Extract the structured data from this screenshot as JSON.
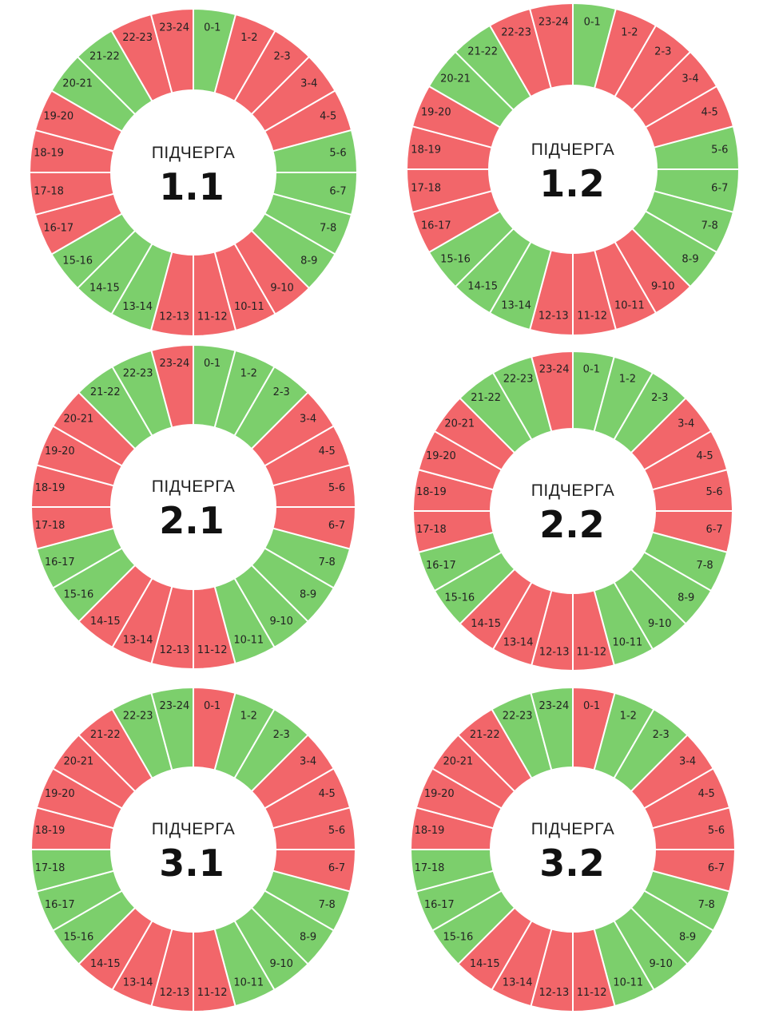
{
  "colors": {
    "on": "#7ccf6c",
    "off": "#f2666a",
    "separator": "#ffffff",
    "background": "#ffffff"
  },
  "hour_labels": [
    "0-1",
    "1-2",
    "2-3",
    "3-4",
    "4-5",
    "5-6",
    "6-7",
    "7-8",
    "8-9",
    "9-10",
    "10-11",
    "11-12",
    "12-13",
    "13-14",
    "14-15",
    "15-16",
    "16-17",
    "17-18",
    "18-19",
    "19-20",
    "20-21",
    "21-22",
    "22-23",
    "23-24"
  ],
  "queues": [
    {
      "title": "ПІДЧЕРГА",
      "number": "1.1",
      "states": [
        "on",
        "off",
        "off",
        "off",
        "off",
        "on",
        "on",
        "on",
        "on",
        "off",
        "off",
        "off",
        "off",
        "on",
        "on",
        "on",
        "off",
        "off",
        "off",
        "off",
        "on",
        "on",
        "off",
        "off"
      ]
    },
    {
      "title": "ПІДЧЕРГА",
      "number": "1.2",
      "states": [
        "on",
        "off",
        "off",
        "off",
        "off",
        "on",
        "on",
        "on",
        "on",
        "off",
        "off",
        "off",
        "off",
        "on",
        "on",
        "on",
        "off",
        "off",
        "off",
        "off",
        "on",
        "on",
        "off",
        "off"
      ]
    },
    {
      "title": "ПІДЧЕРГА",
      "number": "2.1",
      "states": [
        "on",
        "on",
        "on",
        "off",
        "off",
        "off",
        "off",
        "on",
        "on",
        "on",
        "on",
        "off",
        "off",
        "off",
        "off",
        "on",
        "on",
        "off",
        "off",
        "off",
        "off",
        "on",
        "on",
        "off"
      ]
    },
    {
      "title": "ПІДЧЕРГА",
      "number": "2.2",
      "states": [
        "on",
        "on",
        "on",
        "off",
        "off",
        "off",
        "off",
        "on",
        "on",
        "on",
        "on",
        "off",
        "off",
        "off",
        "off",
        "on",
        "on",
        "off",
        "off",
        "off",
        "off",
        "on",
        "on",
        "off"
      ]
    },
    {
      "title": "ПІДЧЕРГА",
      "number": "3.1",
      "states": [
        "off",
        "on",
        "on",
        "off",
        "off",
        "off",
        "off",
        "on",
        "on",
        "on",
        "on",
        "off",
        "off",
        "off",
        "off",
        "on",
        "on",
        "on",
        "off",
        "off",
        "off",
        "off",
        "on",
        "on"
      ]
    },
    {
      "title": "ПІДЧЕРГА",
      "number": "3.2",
      "states": [
        "off",
        "on",
        "on",
        "off",
        "off",
        "off",
        "off",
        "on",
        "on",
        "on",
        "on",
        "off",
        "off",
        "off",
        "off",
        "on",
        "on",
        "on",
        "off",
        "off",
        "off",
        "off",
        "on",
        "on"
      ]
    }
  ]
}
